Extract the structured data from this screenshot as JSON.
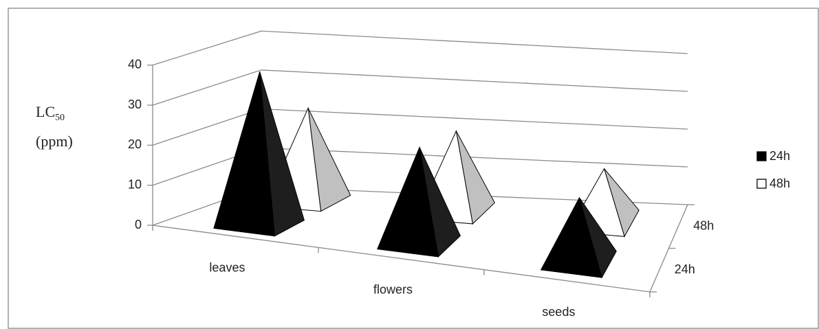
{
  "chart_data": {
    "type": "pyramid3d",
    "y_label": {
      "main": "LC",
      "subscript": "50",
      "unit": "(ppm)"
    },
    "categories": [
      "leaves",
      "flowers",
      "seeds"
    ],
    "series": [
      {
        "name": "24h",
        "color": "#000000",
        "side_color": "#1e1e1e",
        "values": [
          39,
          25,
          17
        ]
      },
      {
        "name": "48h",
        "color": "#ffffff",
        "side_color": "#c0c0c0",
        "values": [
          24,
          21,
          14
        ]
      }
    ],
    "ylim": [
      0,
      40
    ],
    "yticks": [
      0,
      10,
      20,
      30,
      40
    ],
    "grid": true,
    "legend": "right"
  }
}
